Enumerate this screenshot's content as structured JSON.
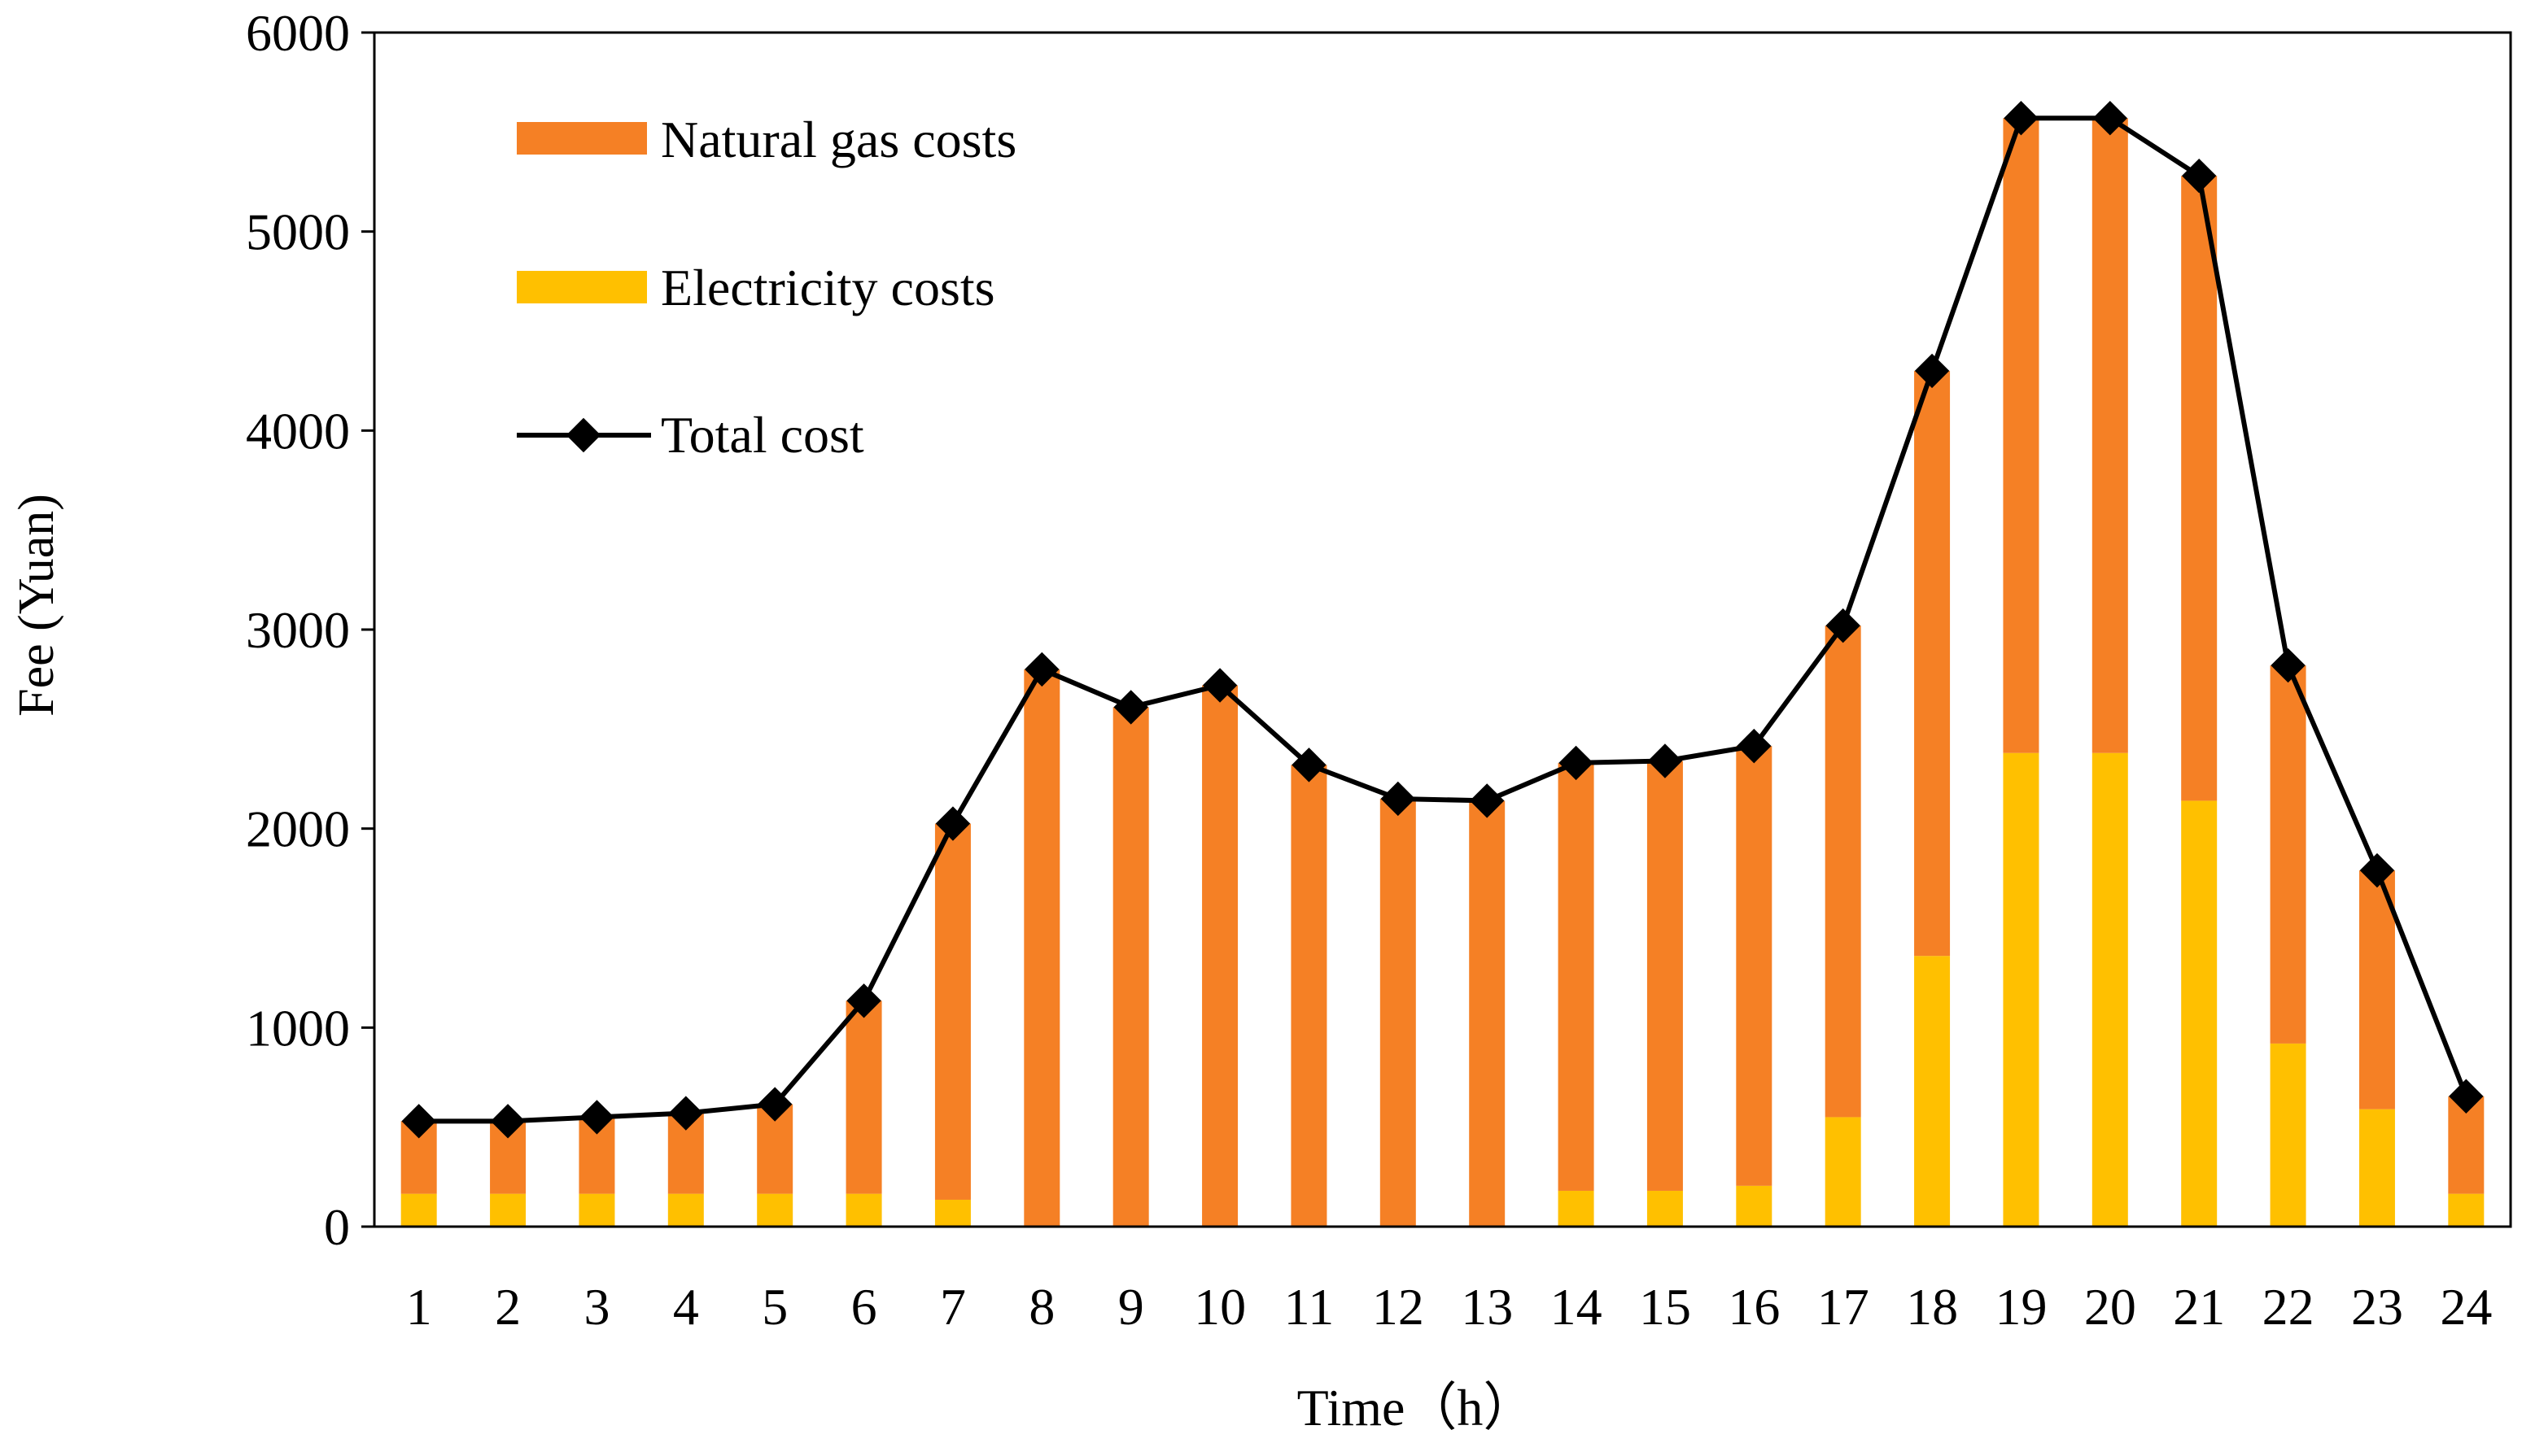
{
  "chart_data": {
    "type": "bar",
    "stacked": true,
    "xlabel": "Time（h）",
    "ylabel": "Fee (Yuan)",
    "ylim": [
      0,
      6000
    ],
    "yticks": [
      0,
      1000,
      2000,
      3000,
      4000,
      5000,
      6000
    ],
    "grid": false,
    "legend_position": "top-left",
    "categories": [
      "1",
      "2",
      "3",
      "4",
      "5",
      "6",
      "7",
      "8",
      "9",
      "10",
      "11",
      "12",
      "13",
      "14",
      "15",
      "16",
      "17",
      "18",
      "19",
      "20",
      "21",
      "22",
      "23",
      "24"
    ],
    "series": [
      {
        "name": "Natural gas costs",
        "type": "bar",
        "color": "#F58025",
        "values": [
          365,
          365,
          385,
          405,
          450,
          970,
          1890,
          2800,
          2610,
          2720,
          2320,
          2150,
          2140,
          2150,
          2160,
          2210,
          2470,
          2940,
          3190,
          3190,
          3140,
          1900,
          1200,
          490
        ]
      },
      {
        "name": "Electricity costs",
        "type": "bar",
        "color": "#FFC000",
        "values": [
          165,
          165,
          165,
          165,
          165,
          165,
          135,
          0,
          0,
          0,
          0,
          0,
          0,
          180,
          180,
          205,
          550,
          1360,
          2380,
          2380,
          2140,
          920,
          590,
          165
        ]
      },
      {
        "name": "Total cost",
        "type": "line",
        "color": "#000000",
        "values": [
          530,
          530,
          550,
          570,
          615,
          1135,
          2025,
          2800,
          2610,
          2720,
          2320,
          2150,
          2140,
          2330,
          2340,
          2415,
          3020,
          4300,
          5570,
          5570,
          5280,
          2820,
          1790,
          655
        ]
      }
    ]
  }
}
